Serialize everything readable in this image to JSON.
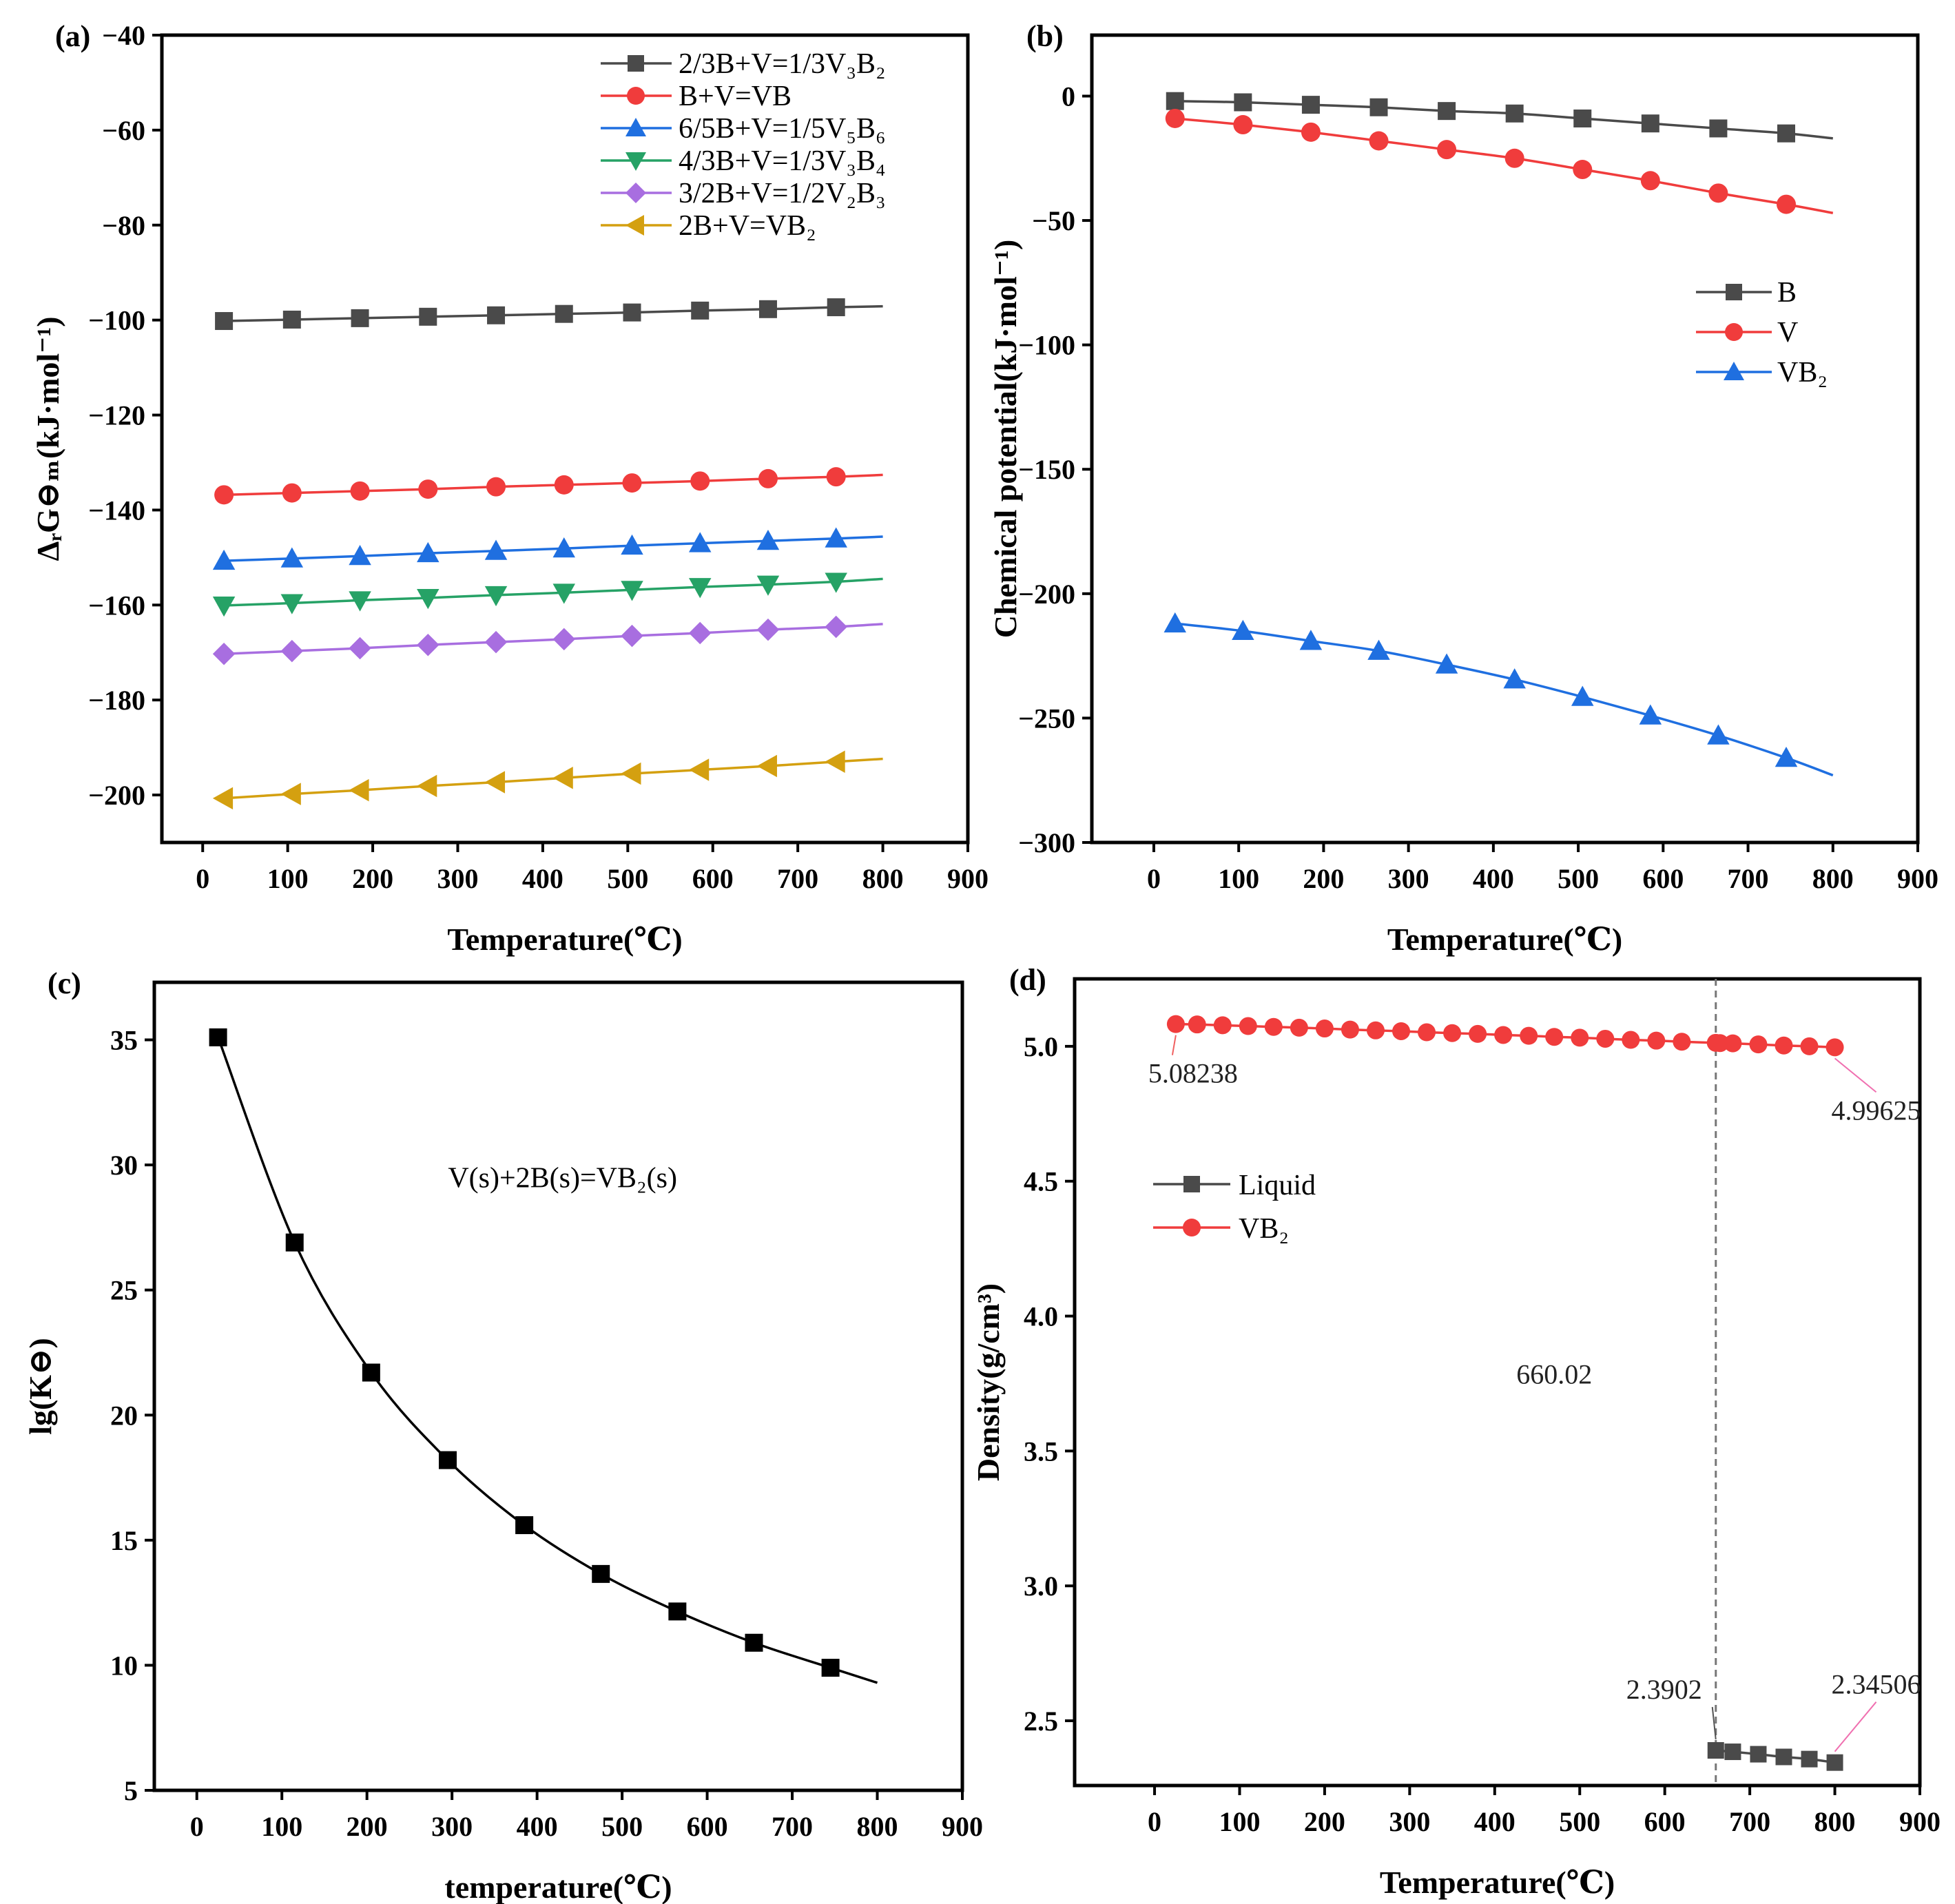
{
  "chart_data": [
    {
      "panel": "(a)",
      "type": "line",
      "xlabel": "Temperature(℃)",
      "ylabel": "ΔᵣG⊖ₘ(kJ·mol⁻¹)",
      "xlim": [
        -48,
        900
      ],
      "ylim": [
        -210,
        -40
      ],
      "xticks": [
        0,
        100,
        200,
        300,
        400,
        500,
        600,
        700,
        800,
        900
      ],
      "yticks": [
        -40,
        -60,
        -80,
        -100,
        -120,
        -140,
        -160,
        -180,
        -200
      ],
      "legend_position": "top-right",
      "x": [
        25,
        105,
        185,
        265,
        345,
        425,
        505,
        585,
        665,
        745
      ],
      "line_end_x": 800,
      "series": [
        {
          "name": "2/3B+V=1/3V₃B₂",
          "color": "#4a4a4a",
          "marker": "square",
          "values": [
            -100.2,
            -99.9,
            -99.6,
            -99.3,
            -99.0,
            -98.7,
            -98.4,
            -98.0,
            -97.7,
            -97.3
          ],
          "end": -97.1
        },
        {
          "name": "B+V=VB",
          "color": "#f03c3c",
          "marker": "circle",
          "values": [
            -136.8,
            -136.4,
            -136.0,
            -135.6,
            -135.1,
            -134.7,
            -134.3,
            -133.9,
            -133.4,
            -133.0
          ],
          "end": -132.6
        },
        {
          "name": "6/5B+V=1/5V₅B₆",
          "color": "#1f6fe0",
          "marker": "triangle-up",
          "values": [
            -150.7,
            -150.2,
            -149.7,
            -149.1,
            -148.6,
            -148.1,
            -147.5,
            -147.0,
            -146.5,
            -146.0
          ],
          "end": -145.6
        },
        {
          "name": "4/3B+V=1/3V₃B₄",
          "color": "#26a266",
          "marker": "triangle-down",
          "values": [
            -160.1,
            -159.6,
            -159.0,
            -158.5,
            -157.9,
            -157.4,
            -156.8,
            -156.2,
            -155.7,
            -155.1
          ],
          "end": -154.5
        },
        {
          "name": "3/2B+V=1/2V₂B₃",
          "color": "#a86ee0",
          "marker": "diamond",
          "values": [
            -170.3,
            -169.7,
            -169.1,
            -168.4,
            -167.8,
            -167.2,
            -166.5,
            -165.9,
            -165.2,
            -164.6
          ],
          "end": -164.0
        },
        {
          "name": "2B+V=VB₂",
          "color": "#d4a010",
          "marker": "triangle-left",
          "values": [
            -200.7,
            -199.8,
            -199.0,
            -198.1,
            -197.3,
            -196.4,
            -195.5,
            -194.7,
            -193.9,
            -193.0
          ],
          "end": -192.4
        }
      ]
    },
    {
      "panel": "(b)",
      "type": "line",
      "xlabel": "Temperature(℃)",
      "ylabel": "Chemical potential(kJ·mol⁻¹)",
      "xlim": [
        -73,
        900
      ],
      "ylim": [
        -300,
        24.5
      ],
      "xticks": [
        0,
        100,
        200,
        300,
        400,
        500,
        600,
        700,
        800,
        900
      ],
      "yticks": [
        0,
        -50,
        -100,
        -150,
        -200,
        -250,
        -300
      ],
      "legend_position": "upper-right",
      "x": [
        25,
        105,
        185,
        265,
        345,
        425,
        505,
        585,
        665,
        745
      ],
      "line_end_x": 800,
      "series": [
        {
          "name": "B",
          "color": "#4a4a4a",
          "marker": "square",
          "values": [
            -2,
            -2.5,
            -3.5,
            -4.5,
            -6,
            -7,
            -9,
            -11,
            -13,
            -15
          ],
          "end": -17
        },
        {
          "name": "V",
          "color": "#f03c3c",
          "marker": "circle",
          "values": [
            -9,
            -11.5,
            -14.5,
            -18,
            -21.5,
            -25,
            -29.5,
            -34,
            -39,
            -43.5
          ],
          "end": -47
        },
        {
          "name": "VB₂",
          "color": "#1f6fe0",
          "marker": "triangle-up",
          "values": [
            -212,
            -215,
            -219,
            -223,
            -228.5,
            -234.5,
            -241.5,
            -249,
            -257,
            -266
          ],
          "end": -273
        }
      ]
    },
    {
      "panel": "(c)",
      "type": "line",
      "xlabel": "temperature(℃)",
      "ylabel": "lg(K⊖)",
      "xlim": [
        -50,
        900
      ],
      "ylim": [
        5,
        37.3
      ],
      "xticks": [
        0,
        100,
        200,
        300,
        400,
        500,
        600,
        700,
        800,
        900
      ],
      "yticks": [
        5,
        10,
        15,
        20,
        25,
        30,
        35
      ],
      "annotation": "V(s)+2B(s)=VB₂(s)",
      "x": [
        25,
        115,
        205,
        295,
        385,
        475,
        565,
        655,
        745
      ],
      "line_end_x": 800,
      "series": [
        {
          "name": "lgK",
          "color": "#000000",
          "marker": "square",
          "values": [
            35.1,
            26.9,
            21.7,
            18.2,
            15.6,
            13.65,
            12.15,
            10.9,
            9.9
          ],
          "end": 9.3
        }
      ]
    },
    {
      "panel": "(d)",
      "type": "line",
      "xlabel": "Temperature(℃)",
      "ylabel": "Density(g/cm³)",
      "xlim": [
        -94,
        900
      ],
      "ylim": [
        2.26,
        5.25
      ],
      "xticks": [
        0,
        100,
        200,
        300,
        400,
        500,
        600,
        700,
        800,
        900
      ],
      "yticks": [
        2.5,
        3.0,
        3.5,
        4.0,
        4.5,
        5.0
      ],
      "legend_position": "upper-left",
      "vline": 660.02,
      "vline_label": "660.02",
      "series": [
        {
          "name": "Liquid",
          "color": "#4a4a4a",
          "marker": "square",
          "x": [
            660,
            680,
            710,
            740,
            770,
            800
          ],
          "values": [
            2.3902,
            2.385,
            2.376,
            2.366,
            2.358,
            2.34506
          ]
        },
        {
          "name": "VB₂",
          "color": "#f03c3c",
          "marker": "circle",
          "x": [
            25,
            50,
            80,
            110,
            140,
            170,
            200,
            230,
            260,
            290,
            320,
            350,
            380,
            410,
            440,
            470,
            500,
            530,
            560,
            590,
            620,
            660,
            665,
            680,
            710,
            740,
            770,
            800
          ],
          "values": [
            5.08238,
            5.081,
            5.078,
            5.075,
            5.072,
            5.069,
            5.066,
            5.062,
            5.059,
            5.056,
            5.052,
            5.049,
            5.046,
            5.042,
            5.039,
            5.035,
            5.032,
            5.028,
            5.024,
            5.021,
            5.017,
            5.013,
            5.012,
            5.011,
            5.007,
            5.003,
            5.0,
            4.99625
          ]
        }
      ],
      "annotations": [
        {
          "text": "5.08238",
          "x": 25,
          "y": 5.08238,
          "color": "#f06060"
        },
        {
          "text": "4.99625",
          "x": 800,
          "y": 4.99625,
          "color": "#f070b0"
        },
        {
          "text": "2.3902",
          "x": 660,
          "y": 2.3902,
          "color": "#555555"
        },
        {
          "text": "2.34506",
          "x": 800,
          "y": 2.34506,
          "color": "#f070b0"
        }
      ]
    }
  ]
}
